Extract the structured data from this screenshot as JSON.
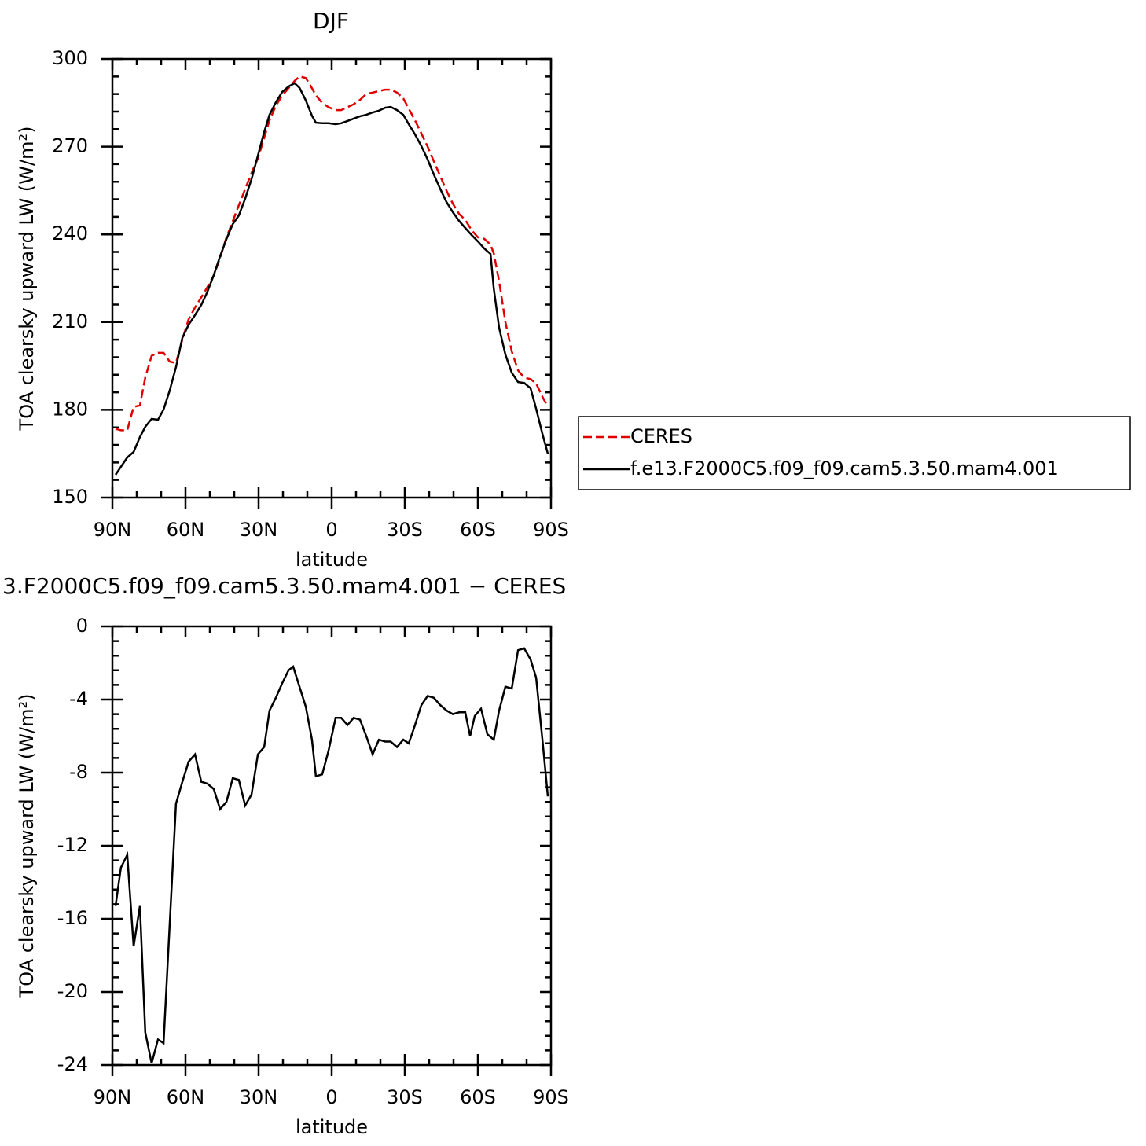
{
  "chart_data": [
    {
      "type": "line",
      "title": "DJF",
      "xlabel": "latitude",
      "ylabel": "TOA clearsky upward LW (W/m²)",
      "xlim": [
        90,
        -90
      ],
      "xticks": [
        {
          "value": 90,
          "label": "90N"
        },
        {
          "value": 60,
          "label": "60N"
        },
        {
          "value": 30,
          "label": "30N"
        },
        0,
        {
          "value": -30,
          "label": "30S"
        },
        {
          "value": -60,
          "label": "60S"
        },
        {
          "value": -90,
          "label": "90S"
        }
      ],
      "ylim": [
        150,
        300
      ],
      "yticks": [
        150,
        180,
        210,
        240,
        270,
        300
      ],
      "x": [
        88.7,
        86.5,
        83.9,
        81.3,
        78.7,
        76.5,
        73.9,
        71.3,
        69,
        66.5,
        63.9,
        61.3,
        58.7,
        56.1,
        53.5,
        51,
        48.4,
        45.8,
        43.2,
        40.6,
        38.1,
        35.5,
        32.9,
        30.3,
        27.7,
        25.5,
        22.9,
        20.3,
        17.7,
        15.2,
        13.2,
        10.6,
        8.1,
        6.5,
        3.9,
        1.3,
        -1.6,
        -3.9,
        -6.5,
        -9,
        -11.6,
        -14.2,
        -16.8,
        -19.4,
        -21.9,
        -24.2,
        -26.8,
        -29.4,
        -31.6,
        -34.2,
        -36.8,
        -39.4,
        -41.9,
        -44.5,
        -47.1,
        -49.7,
        -52.3,
        -54.8,
        -57.4,
        -60,
        -62.6,
        -65.2,
        -66.5,
        -68.7,
        -71.3,
        -73.9,
        -76.5,
        -79,
        -81.6,
        -83.9,
        -86.5,
        -88.7
      ],
      "series": [
        {
          "name": "CERES",
          "color": "#e00000",
          "line_style": "dashed",
          "values": [
            173.5,
            173,
            173,
            181,
            181.5,
            191,
            198.5,
            199.5,
            199.5,
            196.5,
            196,
            204,
            211,
            215,
            218.5,
            222,
            226,
            232,
            239,
            244.5,
            250,
            255.5,
            261,
            266,
            273,
            279,
            284,
            287.5,
            290,
            292.5,
            294,
            293.5,
            290,
            287.5,
            285,
            283.5,
            282.5,
            282.5,
            283.5,
            284.5,
            286,
            288,
            288.5,
            289,
            289.5,
            289.5,
            288.5,
            286.5,
            283,
            279,
            274.5,
            270,
            265,
            260,
            255,
            250.5,
            247,
            245,
            241.5,
            239,
            238.5,
            236.5,
            233.5,
            224,
            210,
            200,
            193.5,
            191,
            190.5,
            189,
            184.5,
            181
          ]
        },
        {
          "name": "f.e13.F2000C5.f09_f09.cam5.3.50.mam4.001",
          "color": "#000000",
          "line_style": "solid",
          "values": [
            157.8,
            160.5,
            163.7,
            165.6,
            170.7,
            174.2,
            176.9,
            176.6,
            180.1,
            186.6,
            194.6,
            204.6,
            209.1,
            212.4,
            215.9,
            220.4,
            226.1,
            232.5,
            238.4,
            243.5,
            246.5,
            252.2,
            258.9,
            266.9,
            275,
            280.9,
            285.2,
            288.7,
            290.6,
            291.7,
            290.1,
            285.8,
            280.6,
            278.2,
            278,
            278,
            277.7,
            278,
            278.8,
            279.6,
            280.4,
            280.9,
            281.7,
            282.3,
            283.3,
            283.6,
            282.5,
            280.9,
            277.7,
            274.2,
            270.2,
            265.6,
            260.5,
            255.6,
            251.1,
            247.6,
            244.6,
            242.2,
            239.8,
            237.6,
            235.2,
            233.3,
            221.5,
            208.1,
            198.9,
            192.7,
            189.5,
            189.2,
            187.4,
            180.4,
            171.8,
            165
          ]
        }
      ]
    },
    {
      "type": "line",
      "title": "3.F2000C5.f09_f09.cam5.3.50.mam4.001  −  CERES",
      "xlabel": "latitude",
      "ylabel": "TOA clearsky upward LW (W/m²)",
      "xlim": [
        90,
        -90
      ],
      "xticks": [
        {
          "value": 90,
          "label": "90N"
        },
        {
          "value": 60,
          "label": "60N"
        },
        {
          "value": 30,
          "label": "30N"
        },
        0,
        {
          "value": -30,
          "label": "30S"
        },
        {
          "value": -60,
          "label": "60S"
        },
        {
          "value": -90,
          "label": "90S"
        }
      ],
      "ylim": [
        -24,
        0
      ],
      "yticks": [
        -24,
        -20,
        -16,
        -12,
        -8,
        -4,
        0
      ],
      "x": [
        88.7,
        86.5,
        83.9,
        81.3,
        78.7,
        76.5,
        73.9,
        71.3,
        69,
        66.5,
        63.9,
        61.3,
        58.7,
        56.1,
        53.5,
        51,
        48.4,
        45.8,
        43.2,
        40.6,
        38.1,
        35.5,
        32.9,
        30.3,
        27.7,
        25.5,
        22.9,
        20.3,
        17.7,
        15.8,
        10.6,
        8.1,
        6.5,
        3.9,
        1.3,
        -1.6,
        -3.9,
        -6.5,
        -9,
        -11.6,
        -14.2,
        -16.8,
        -19.4,
        -21.9,
        -24.2,
        -26.8,
        -29.4,
        -31.6,
        -34.2,
        -36.8,
        -39.4,
        -41.9,
        -44.5,
        -47.1,
        -49.7,
        -52.3,
        -54.8,
        -56.8,
        -58.7,
        -61.3,
        -63.9,
        -66.5,
        -68.7,
        -71.3,
        -73.9,
        -76.5,
        -79,
        -81.6,
        -83.9,
        -86.5,
        -88.7
      ],
      "series": [
        {
          "color": "#000000",
          "line_style": "solid",
          "values": [
            -15.3,
            -13.2,
            -12.5,
            -17.5,
            -15.3,
            -22.2,
            -23.9,
            -22.6,
            -22.8,
            -16.3,
            -9.7,
            -8.5,
            -7.4,
            -7,
            -8.5,
            -8.6,
            -8.9,
            -10,
            -9.6,
            -8.3,
            -8.4,
            -9.8,
            -9.2,
            -7,
            -6.6,
            -4.6,
            -3.9,
            -3.1,
            -2.4,
            -2.2,
            -4.4,
            -6.2,
            -8.2,
            -8.1,
            -6.8,
            -5,
            -5,
            -5.4,
            -5,
            -5.1,
            -6,
            -7,
            -6.2,
            -6.3,
            -6.3,
            -6.6,
            -6.2,
            -6.4,
            -5.4,
            -4.3,
            -3.8,
            -3.9,
            -4.3,
            -4.6,
            -4.8,
            -4.7,
            -4.7,
            -6,
            -4.9,
            -4.5,
            -5.9,
            -6.2,
            -4.6,
            -3.3,
            -3.4,
            -1.3,
            -1.2,
            -1.8,
            -2.8,
            -6.2,
            -9.3
          ]
        }
      ]
    }
  ]
}
